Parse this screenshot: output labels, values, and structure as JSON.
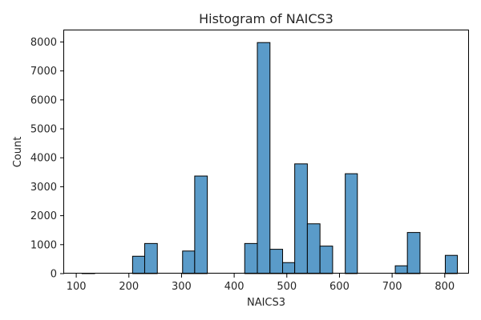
{
  "chart_data": {
    "type": "bar",
    "title": "Histogram of NAICS3",
    "xlabel": "NAICS3",
    "ylabel": "Count",
    "xlim": [
      77,
      846
    ],
    "ylim": [
      0,
      8400
    ],
    "xticks": [
      100,
      200,
      300,
      400,
      500,
      600,
      700,
      800
    ],
    "yticks": [
      0,
      1000,
      2000,
      3000,
      4000,
      5000,
      6000,
      7000,
      8000
    ],
    "grid": false,
    "bar_color": "#5a9bc9",
    "bins": [
      {
        "x0": 111,
        "x1": 135,
        "count": 10
      },
      {
        "x0": 135,
        "x1": 159,
        "count": 0
      },
      {
        "x0": 159,
        "x1": 183,
        "count": 0
      },
      {
        "x0": 183,
        "x1": 207,
        "count": 0
      },
      {
        "x0": 207,
        "x1": 230,
        "count": 600
      },
      {
        "x0": 230,
        "x1": 254,
        "count": 1040
      },
      {
        "x0": 254,
        "x1": 278,
        "count": 0
      },
      {
        "x0": 278,
        "x1": 302,
        "count": 0
      },
      {
        "x0": 302,
        "x1": 325,
        "count": 780
      },
      {
        "x0": 325,
        "x1": 349,
        "count": 3370
      },
      {
        "x0": 349,
        "x1": 373,
        "count": 0
      },
      {
        "x0": 373,
        "x1": 397,
        "count": 0
      },
      {
        "x0": 397,
        "x1": 420,
        "count": 0
      },
      {
        "x0": 420,
        "x1": 444,
        "count": 1040
      },
      {
        "x0": 444,
        "x1": 468,
        "count": 7980
      },
      {
        "x0": 468,
        "x1": 492,
        "count": 840
      },
      {
        "x0": 492,
        "x1": 515,
        "count": 380
      },
      {
        "x0": 515,
        "x1": 539,
        "count": 3790
      },
      {
        "x0": 539,
        "x1": 563,
        "count": 1720
      },
      {
        "x0": 563,
        "x1": 587,
        "count": 950
      },
      {
        "x0": 587,
        "x1": 611,
        "count": 0
      },
      {
        "x0": 611,
        "x1": 634,
        "count": 3450
      },
      {
        "x0": 634,
        "x1": 658,
        "count": 0
      },
      {
        "x0": 658,
        "x1": 682,
        "count": 0
      },
      {
        "x0": 682,
        "x1": 706,
        "count": 0
      },
      {
        "x0": 706,
        "x1": 729,
        "count": 270
      },
      {
        "x0": 729,
        "x1": 753,
        "count": 1420
      },
      {
        "x0": 753,
        "x1": 777,
        "count": 0
      },
      {
        "x0": 777,
        "x1": 801,
        "count": 0
      },
      {
        "x0": 801,
        "x1": 824,
        "count": 630
      }
    ]
  }
}
